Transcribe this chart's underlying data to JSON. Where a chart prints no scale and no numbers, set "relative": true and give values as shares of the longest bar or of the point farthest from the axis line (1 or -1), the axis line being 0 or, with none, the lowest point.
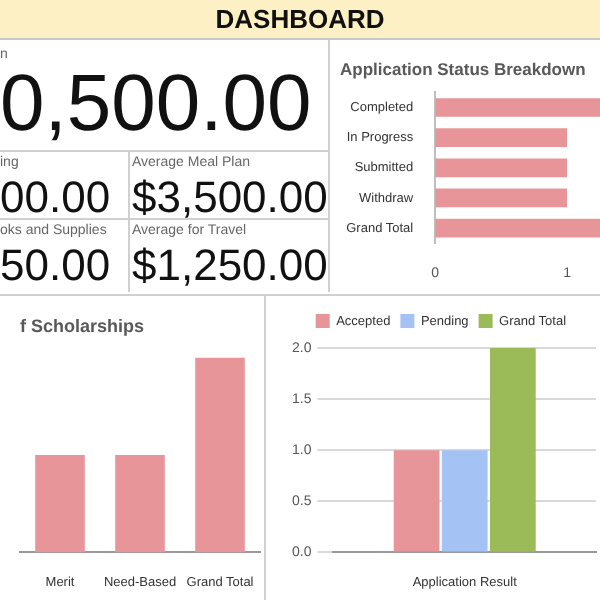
{
  "chart_data": [
    {
      "type": "other",
      "title": "DASHBOARD",
      "annotations": [
        "n",
        "0,500.00",
        "ing",
        "00.00",
        "Average Meal Plan",
        "$3,500.00",
        "oks and Supplies",
        "50.00",
        "Average for Travel",
        "$1,250.00"
      ]
    },
    {
      "type": "bar",
      "orientation": "horizontal",
      "title": "Application Status Breakdown",
      "categories": [
        "Completed",
        "In Progress",
        "Submitted",
        "Withdraw",
        "Grand Total"
      ],
      "values": [
        1.25,
        1,
        1,
        1,
        1.25
      ],
      "color": "#e8959a",
      "xlim": [
        0,
        1.25
      ],
      "xticks": [
        0,
        1
      ]
    },
    {
      "type": "bar",
      "title": "f Scholarships",
      "categories": [
        "Merit",
        "Need-Based",
        "Grand Total"
      ],
      "values": [
        0.5,
        0.5,
        1
      ],
      "color": "#e8959a",
      "relative": true
    },
    {
      "type": "bar",
      "categories": [
        "Application Result"
      ],
      "series": [
        {
          "name": "Accepted",
          "color": "#e8959a",
          "values": [
            1
          ]
        },
        {
          "name": "Pending",
          "color": "#a4c2f4",
          "values": [
            1
          ]
        },
        {
          "name": "Grand Total",
          "color": "#9bbb59",
          "values": [
            2
          ]
        }
      ],
      "ylim": [
        0,
        2
      ],
      "yticks": [
        {
          "value": 0,
          "label": "0.0"
        },
        {
          "value": 0.5,
          "label": "0.5"
        },
        {
          "value": 1,
          "label": "1.0"
        },
        {
          "value": 1.5,
          "label": "1.5"
        },
        {
          "value": 2,
          "label": "2.0"
        }
      ],
      "grid": "y",
      "legend": "top"
    }
  ]
}
